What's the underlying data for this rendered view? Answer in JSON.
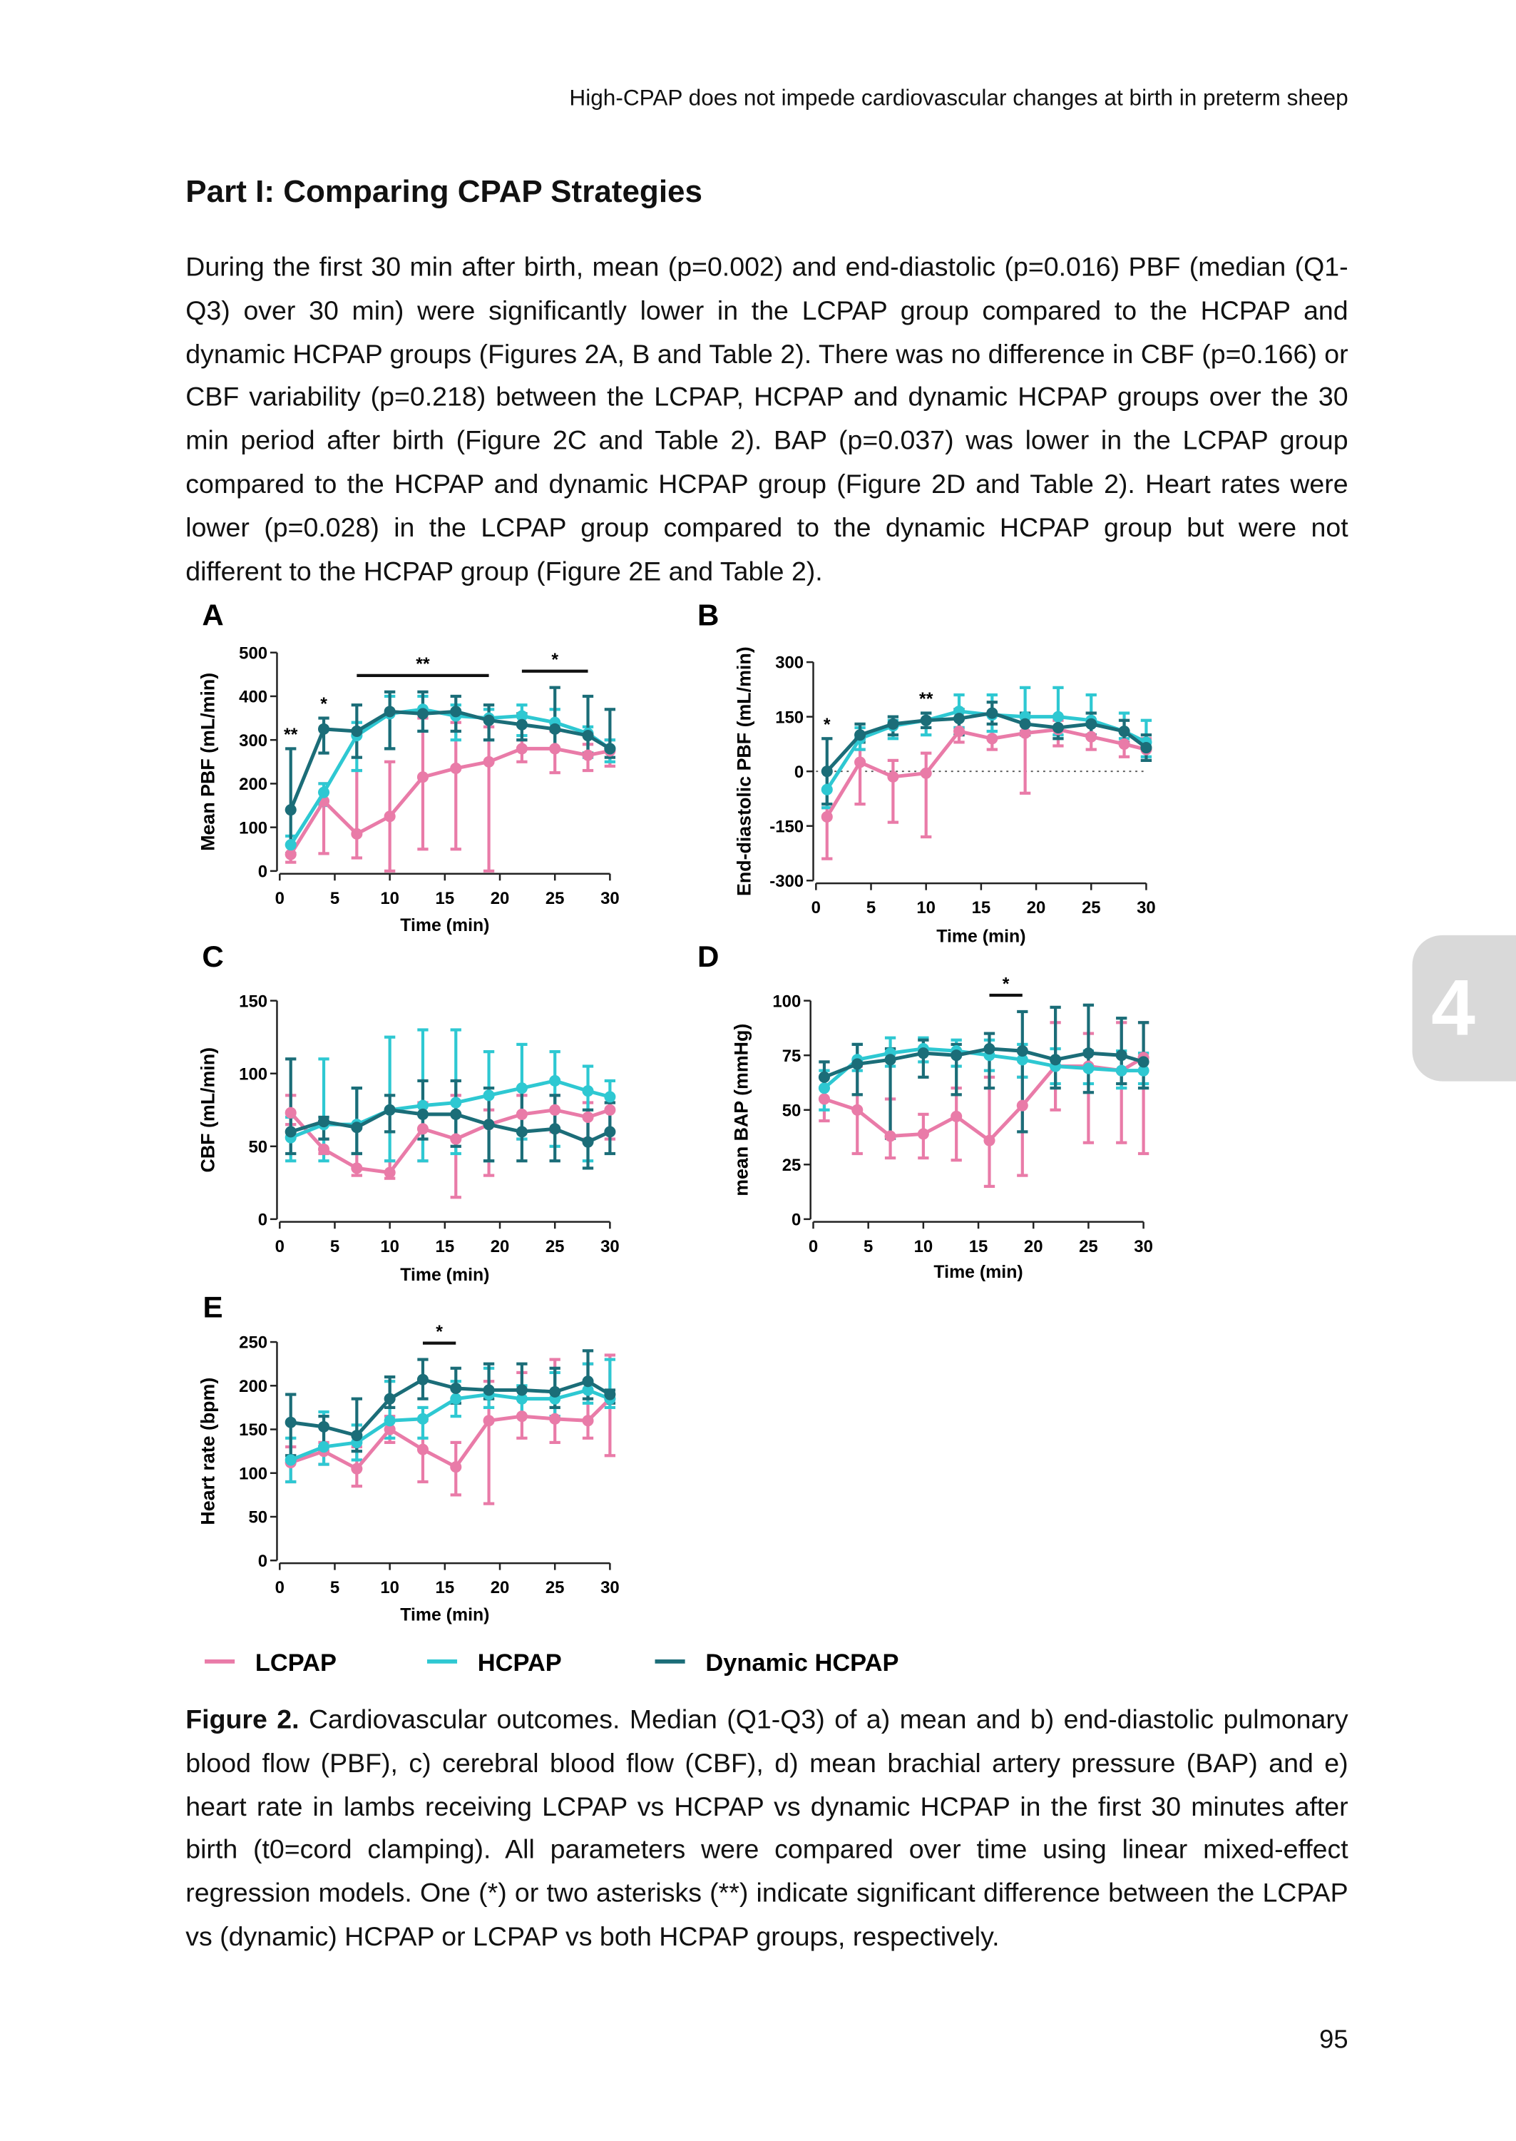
{
  "header": "High-CPAP does not impede cardiovascular changes at birth in preterm sheep",
  "heading": "Part I: Comparing CPAP Strategies",
  "paragraph": "During the first 30 min after birth, mean (p=0.002) and end-diastolic (p=0.016) PBF (median (Q1-Q3) over 30 min) were significantly lower in the LCPAP group compared to the HCPAP and dynamic HCPAP groups (Figures 2A, B and Table 2). There was no difference in CBF (p=0.166) or CBF variability (p=0.218) between the LCPAP, HCPAP and dynamic HCPAP groups over the 30 min period after birth (Figure 2C and Table 2). BAP (p=0.037) was lower in the LCPAP group compared to the HCPAP and dynamic HCPAP group (Figure 2D and Table 2). Heart rates were lower (p=0.028) in the LCPAP group compared to the dynamic HCPAP group but were not different to the HCPAP group (Figure 2E and Table 2).",
  "chart_data": [
    {
      "type": "line",
      "panel": "A",
      "y_label": "Mean PBF (mL/min)",
      "x_label": "Time (min)",
      "x": [
        1,
        4,
        7,
        10,
        13,
        16,
        19,
        22,
        25,
        28,
        30
      ],
      "xlim": [
        0,
        30
      ],
      "xticks": [
        0,
        5,
        10,
        15,
        20,
        25,
        30
      ],
      "ylim": [
        0,
        500
      ],
      "yticks": [
        0,
        100,
        200,
        300,
        400,
        500
      ],
      "significance": [
        {
          "text": "**",
          "x": [
            1
          ]
        },
        {
          "text": "*",
          "x": [
            4
          ]
        },
        {
          "text": "**",
          "x": [
            7,
            19
          ]
        },
        {
          "text": "*",
          "x": [
            22,
            28
          ]
        }
      ],
      "series": [
        {
          "name": "LCPAP",
          "color": "#e97ba8",
          "values": [
            38,
            160,
            85,
            125,
            215,
            235,
            250,
            280,
            280,
            265,
            275
          ],
          "lower": [
            20,
            40,
            30,
            0,
            50,
            50,
            0,
            250,
            225,
            230,
            240
          ],
          "upper": [
            60,
            200,
            230,
            250,
            350,
            340,
            330,
            300,
            320,
            290,
            300
          ]
        },
        {
          "name": "HCPAP",
          "color": "#2ec8d2",
          "values": [
            60,
            180,
            310,
            360,
            370,
            355,
            350,
            355,
            340,
            315,
            280
          ],
          "lower": [
            40,
            150,
            230,
            280,
            320,
            300,
            300,
            310,
            280,
            260,
            250
          ],
          "upper": [
            80,
            200,
            340,
            400,
            400,
            380,
            370,
            380,
            370,
            330,
            300
          ]
        },
        {
          "name": "Dynamic HCPAP",
          "color": "#1b6d78",
          "values": [
            140,
            325,
            320,
            365,
            360,
            365,
            345,
            335,
            325,
            310,
            280
          ],
          "lower": [
            40,
            270,
            260,
            280,
            320,
            320,
            300,
            300,
            280,
            270,
            260
          ],
          "upper": [
            280,
            350,
            380,
            410,
            410,
            400,
            380,
            360,
            420,
            400,
            370
          ]
        }
      ]
    },
    {
      "type": "line",
      "panel": "B",
      "y_label": "End-diastolic PBF (mL/min)",
      "x_label": "Time (min)",
      "zero_line": true,
      "x": [
        1,
        4,
        7,
        10,
        13,
        16,
        19,
        22,
        25,
        28,
        30
      ],
      "xlim": [
        0,
        30
      ],
      "xticks": [
        0,
        5,
        10,
        15,
        20,
        25,
        30
      ],
      "ylim": [
        -300,
        300
      ],
      "yticks": [
        -300,
        -150,
        0,
        150,
        300
      ],
      "significance": [
        {
          "text": "*",
          "x": [
            1
          ]
        },
        {
          "text": "**",
          "x": [
            10
          ]
        }
      ],
      "series": [
        {
          "color": "#e97ba8",
          "values": [
            -125,
            25,
            -15,
            -5,
            110,
            90,
            105,
            115,
            95,
            75,
            60
          ],
          "lower": [
            -240,
            -90,
            -140,
            -180,
            80,
            60,
            -60,
            70,
            60,
            40,
            30
          ],
          "upper": [
            -100,
            60,
            30,
            50,
            120,
            110,
            130,
            140,
            140,
            110,
            90
          ]
        },
        {
          "color": "#2ec8d2",
          "values": [
            -50,
            90,
            125,
            140,
            165,
            155,
            150,
            150,
            140,
            110,
            80
          ],
          "lower": [
            -100,
            60,
            90,
            100,
            120,
            110,
            110,
            100,
            100,
            90,
            40
          ],
          "upper": [
            0,
            120,
            140,
            160,
            210,
            210,
            230,
            230,
            210,
            160,
            140
          ]
        },
        {
          "color": "#1b6d78",
          "values": [
            0,
            100,
            130,
            140,
            145,
            160,
            130,
            120,
            130,
            110,
            65
          ],
          "lower": [
            -90,
            80,
            100,
            120,
            100,
            130,
            100,
            90,
            100,
            80,
            30
          ],
          "upper": [
            90,
            130,
            150,
            160,
            170,
            190,
            160,
            150,
            160,
            140,
            100
          ]
        }
      ]
    },
    {
      "type": "line",
      "panel": "C",
      "y_label": "CBF (mL/min)",
      "x_label": "Time (min)",
      "x": [
        1,
        4,
        7,
        10,
        13,
        16,
        19,
        22,
        25,
        28,
        30
      ],
      "xlim": [
        0,
        30
      ],
      "xticks": [
        0,
        5,
        10,
        15,
        20,
        25,
        30
      ],
      "ylim": [
        0,
        150
      ],
      "yticks": [
        0,
        50,
        100,
        150
      ],
      "series": [
        {
          "color": "#e97ba8",
          "values": [
            73,
            48,
            35,
            32,
            62,
            55,
            65,
            72,
            75,
            70,
            75
          ],
          "lower": [
            65,
            45,
            30,
            28,
            40,
            15,
            30,
            55,
            60,
            55,
            55
          ],
          "upper": [
            85,
            55,
            45,
            40,
            80,
            85,
            75,
            85,
            85,
            80,
            80
          ]
        },
        {
          "color": "#2ec8d2",
          "values": [
            56,
            65,
            65,
            75,
            78,
            80,
            85,
            90,
            95,
            88,
            84
          ],
          "lower": [
            40,
            40,
            45,
            40,
            40,
            45,
            40,
            55,
            50,
            40,
            60
          ],
          "upper": [
            70,
            110,
            90,
            125,
            130,
            130,
            115,
            120,
            115,
            105,
            95
          ]
        },
        {
          "color": "#1b6d78",
          "values": [
            60,
            67,
            63,
            75,
            72,
            72,
            65,
            60,
            62,
            53,
            60
          ],
          "lower": [
            45,
            55,
            45,
            60,
            55,
            50,
            40,
            40,
            40,
            35,
            45
          ],
          "upper": [
            110,
            70,
            90,
            85,
            95,
            95,
            90,
            90,
            85,
            75,
            80
          ]
        }
      ]
    },
    {
      "type": "line",
      "panel": "D",
      "y_label": "mean BAP (mmHg)",
      "x_label": "Time (min)",
      "x": [
        1,
        4,
        7,
        10,
        13,
        16,
        19,
        22,
        25,
        28,
        30
      ],
      "xlim": [
        0,
        30
      ],
      "xticks": [
        0,
        5,
        10,
        15,
        20,
        25,
        30
      ],
      "ylim": [
        0,
        100
      ],
      "yticks": [
        0,
        25,
        50,
        75,
        100
      ],
      "significance": [
        {
          "text": "*",
          "x": [
            16,
            19
          ]
        }
      ],
      "series": [
        {
          "color": "#e97ba8",
          "values": [
            55,
            50,
            38,
            39,
            47,
            36,
            52,
            70,
            70,
            68,
            74
          ],
          "lower": [
            45,
            30,
            28,
            28,
            27,
            15,
            20,
            50,
            35,
            35,
            30
          ],
          "upper": [
            65,
            70,
            55,
            48,
            60,
            65,
            65,
            90,
            85,
            90,
            90
          ]
        },
        {
          "color": "#2ec8d2",
          "values": [
            60,
            73,
            76,
            78,
            77,
            75,
            73,
            70,
            69,
            68,
            68
          ],
          "lower": [
            50,
            68,
            70,
            72,
            70,
            68,
            65,
            62,
            62,
            60,
            62
          ],
          "upper": [
            68,
            80,
            83,
            83,
            82,
            82,
            80,
            78,
            77,
            77,
            76
          ]
        },
        {
          "color": "#1b6d78",
          "values": [
            65,
            71,
            73,
            76,
            75,
            78,
            77,
            73,
            76,
            75,
            72
          ],
          "lower": [
            60,
            57,
            37,
            65,
            57,
            60,
            40,
            60,
            58,
            62,
            60
          ],
          "upper": [
            72,
            80,
            78,
            82,
            80,
            85,
            95,
            97,
            98,
            92,
            90
          ]
        }
      ]
    },
    {
      "type": "line",
      "panel": "E",
      "y_label": "Heart rate (bpm)",
      "x_label": "Time (min)",
      "x": [
        1,
        4,
        7,
        10,
        13,
        16,
        19,
        22,
        25,
        28,
        30
      ],
      "xlim": [
        0,
        30
      ],
      "xticks": [
        0,
        5,
        10,
        15,
        20,
        25,
        30
      ],
      "ylim": [
        0,
        250
      ],
      "yticks": [
        0,
        50,
        100,
        150,
        200,
        250
      ],
      "significance": [
        {
          "text": "*",
          "x": [
            13,
            16
          ]
        }
      ],
      "series": [
        {
          "color": "#e97ba8",
          "values": [
            112,
            125,
            105,
            150,
            127,
            107,
            160,
            165,
            162,
            160,
            185
          ],
          "lower": [
            90,
            110,
            85,
            135,
            90,
            75,
            65,
            140,
            135,
            140,
            120
          ],
          "upper": [
            130,
            135,
            130,
            165,
            160,
            135,
            205,
            215,
            230,
            225,
            235
          ]
        },
        {
          "color": "#2ec8d2",
          "values": [
            115,
            130,
            135,
            160,
            162,
            185,
            190,
            185,
            185,
            195,
            185
          ],
          "lower": [
            90,
            110,
            115,
            140,
            140,
            165,
            175,
            165,
            165,
            180,
            175
          ],
          "upper": [
            140,
            170,
            155,
            205,
            175,
            205,
            220,
            200,
            215,
            225,
            230
          ]
        },
        {
          "color": "#1b6d78",
          "values": [
            158,
            153,
            143,
            185,
            207,
            197,
            195,
            195,
            193,
            205,
            190
          ],
          "lower": [
            120,
            130,
            125,
            175,
            185,
            180,
            185,
            185,
            175,
            185,
            180
          ],
          "upper": [
            190,
            165,
            185,
            210,
            230,
            220,
            225,
            225,
            220,
            240,
            195
          ]
        }
      ]
    }
  ],
  "caption": {
    "label": "Figure 2.",
    "text": "Cardiovascular outcomes. Median (Q1-Q3) of a) mean and b) end-diastolic pulmonary blood flow (PBF), c) cerebral blood flow (CBF), d) mean brachial artery pressure (BAP) and e) heart rate in lambs receiving LCPAP vs HCPAP vs dynamic HCPAP in the first 30 minutes after birth (t0=cord clamping). All parameters were compared over time using linear mixed-effect regression models. One (*) or two asterisks (**) indicate significant difference between the LCPAP vs (dynamic) HCPAP or LCPAP vs both HCPAP groups, respectively."
  },
  "chapter": "4",
  "page_number": "95"
}
